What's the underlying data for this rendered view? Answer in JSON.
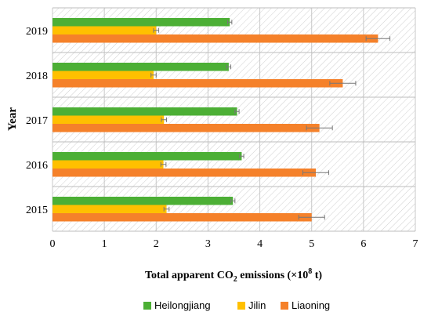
{
  "chart_data": {
    "type": "bar",
    "orientation": "horizontal",
    "categories": [
      "2015",
      "2016",
      "2017",
      "2018",
      "2019"
    ],
    "series": [
      {
        "name": "Heilongjiang",
        "color": "#4caf35",
        "values": [
          3.48,
          3.65,
          3.56,
          3.4,
          3.42
        ],
        "errors": [
          0.04,
          0.04,
          0.04,
          0.04,
          0.04
        ]
      },
      {
        "name": "Jilin",
        "color": "#ffc000",
        "values": [
          2.2,
          2.14,
          2.15,
          1.95,
          2.0
        ],
        "errors": [
          0.05,
          0.05,
          0.05,
          0.05,
          0.05
        ]
      },
      {
        "name": "Liaoning",
        "color": "#f5812a",
        "values": [
          5.0,
          5.08,
          5.15,
          5.6,
          6.28
        ],
        "errors": [
          0.25,
          0.25,
          0.25,
          0.25,
          0.23
        ]
      }
    ],
    "xlim": [
      0,
      7
    ],
    "xticks": [
      "0",
      "1",
      "2",
      "3",
      "4",
      "5",
      "6",
      "7"
    ],
    "xlabel_parts": {
      "pre": "Total apparent CO",
      "sub": "2",
      "mid": " emissions (×10",
      "sup": "8",
      "post": " t)"
    },
    "ylabel": "Year",
    "grid": "vertical",
    "legend_position": "bottom"
  }
}
